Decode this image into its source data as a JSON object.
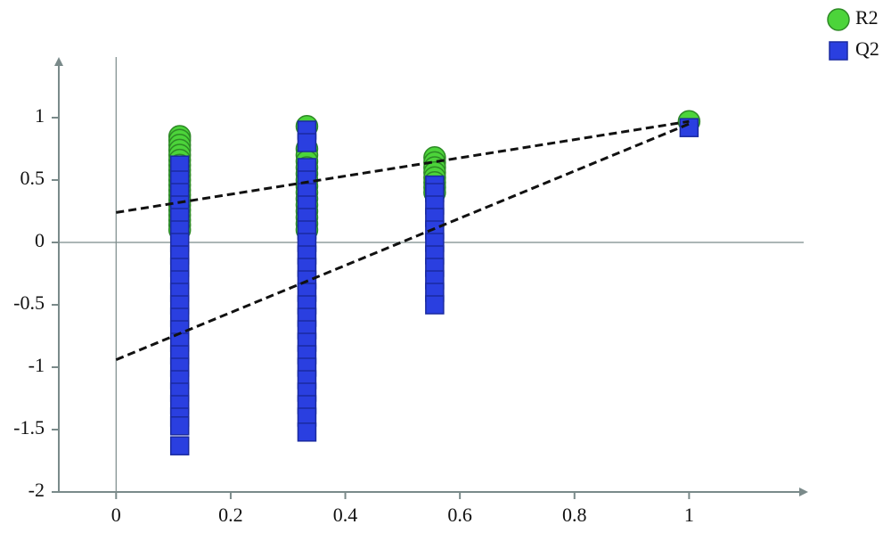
{
  "chart_data": {
    "type": "scatter",
    "xlim": [
      -0.1,
      1.2
    ],
    "ylim": [
      -2,
      1.45
    ],
    "xticks": [
      0,
      0.2,
      0.4,
      0.6,
      0.8,
      1
    ],
    "yticks": [
      -2,
      -1.5,
      -1,
      -0.5,
      0,
      0.5,
      1
    ],
    "legend": "top-right",
    "series": [
      {
        "name": "R2",
        "color": "#4cd43a",
        "marker": "circle",
        "x": [
          0.111,
          0.111,
          0.111,
          0.111,
          0.111,
          0.111,
          0.111,
          0.111,
          0.111,
          0.111,
          0.111,
          0.111,
          0.111,
          0.111,
          0.111,
          0.111,
          0.111,
          0.111,
          0.111,
          0.111,
          0.333,
          0.333,
          0.333,
          0.333,
          0.333,
          0.333,
          0.333,
          0.333,
          0.333,
          0.333,
          0.333,
          0.333,
          0.333,
          0.333,
          0.333,
          0.556,
          0.556,
          0.556,
          0.556,
          0.556,
          0.556,
          0.556,
          0.556,
          1
        ],
        "values": [
          0.85,
          0.82,
          0.78,
          0.74,
          0.7,
          0.66,
          0.62,
          0.58,
          0.54,
          0.5,
          0.46,
          0.42,
          0.38,
          0.34,
          0.3,
          0.26,
          0.22,
          0.18,
          0.14,
          0.1,
          0.93,
          0.75,
          0.7,
          0.65,
          0.6,
          0.55,
          0.5,
          0.45,
          0.4,
          0.35,
          0.3,
          0.25,
          0.2,
          0.15,
          0.1,
          0.68,
          0.64,
          0.6,
          0.56,
          0.52,
          0.48,
          0.44,
          0.4,
          0.97
        ],
        "intercept_line": {
          "x": [
            0,
            1
          ],
          "values": [
            0.24,
            0.97
          ]
        }
      },
      {
        "name": "Q2",
        "color": "#2a3fe0",
        "marker": "square",
        "x": [
          0.111,
          0.111,
          0.111,
          0.111,
          0.111,
          0.111,
          0.111,
          0.111,
          0.111,
          0.111,
          0.111,
          0.111,
          0.111,
          0.111,
          0.111,
          0.111,
          0.111,
          0.111,
          0.111,
          0.111,
          0.111,
          0.111,
          0.111,
          0.333,
          0.333,
          0.333,
          0.333,
          0.333,
          0.333,
          0.333,
          0.333,
          0.333,
          0.333,
          0.333,
          0.333,
          0.333,
          0.333,
          0.333,
          0.333,
          0.333,
          0.333,
          0.333,
          0.333,
          0.333,
          0.333,
          0.333,
          0.333,
          0.556,
          0.556,
          0.556,
          0.556,
          0.556,
          0.556,
          0.556,
          0.556,
          0.556,
          0.556,
          0.556,
          1
        ],
        "values": [
          0.62,
          0.5,
          0.4,
          0.3,
          0.2,
          0.1,
          0,
          -0.1,
          -0.2,
          -0.3,
          -0.4,
          -0.5,
          -0.6,
          -0.7,
          -0.8,
          -0.9,
          -1,
          -1.1,
          -1.2,
          -1.3,
          -1.4,
          -1.47,
          -1.63,
          0.9,
          0.8,
          0.6,
          0.5,
          0.4,
          0.3,
          0.2,
          0.1,
          0,
          -0.1,
          -0.2,
          -0.3,
          -0.4,
          -0.5,
          -0.6,
          -0.7,
          -0.8,
          -0.9,
          -1,
          -1.1,
          -1.2,
          -1.3,
          -1.4,
          -1.52,
          0.46,
          0.4,
          0.3,
          0.2,
          0.1,
          0,
          -0.1,
          -0.2,
          -0.3,
          -0.4,
          -0.5,
          0.92
        ],
        "intercept_line": {
          "x": [
            0,
            1
          ],
          "values": [
            -0.94,
            0.95
          ]
        }
      }
    ]
  }
}
